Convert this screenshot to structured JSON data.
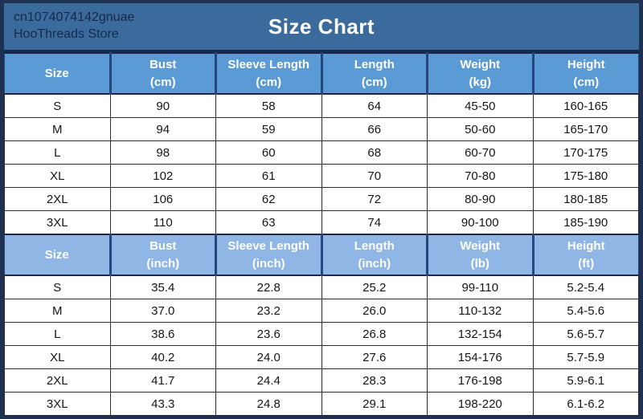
{
  "header": {
    "store_id": "cn1074074142gnuae",
    "store_name": "HooThreads Store",
    "title": "Size Chart"
  },
  "colors": {
    "frame_bg": "#1e3152",
    "banner_bg": "#3b6a9d",
    "banner_text": "#16294d",
    "dark_line": "#17294a",
    "header_sep": "#24467c",
    "header_cm_bg": "#5b9bd5",
    "header_inch_bg": "#8fb6e5"
  },
  "chart_data": [
    {
      "type": "table",
      "title": "Size Chart",
      "section": "metric",
      "columns": [
        "Size",
        "Bust (cm)",
        "Sleeve Length (cm)",
        "Length (cm)",
        "Weight (kg)",
        "Height (cm)"
      ],
      "header_lines": [
        {
          "label": "Size",
          "unit": ""
        },
        {
          "label": "Bust",
          "unit": "(cm)"
        },
        {
          "label": "Sleeve Length",
          "unit": "(cm)"
        },
        {
          "label": "Length",
          "unit": "(cm)"
        },
        {
          "label": "Weight",
          "unit": "(kg)"
        },
        {
          "label": "Height",
          "unit": "(cm)"
        }
      ],
      "rows": [
        [
          "S",
          "90",
          "58",
          "64",
          "45-50",
          "160-165"
        ],
        [
          "M",
          "94",
          "59",
          "66",
          "50-60",
          "165-170"
        ],
        [
          "L",
          "98",
          "60",
          "68",
          "60-70",
          "170-175"
        ],
        [
          "XL",
          "102",
          "61",
          "70",
          "70-80",
          "175-180"
        ],
        [
          "2XL",
          "106",
          "62",
          "72",
          "80-90",
          "180-185"
        ],
        [
          "3XL",
          "110",
          "63",
          "74",
          "90-100",
          "185-190"
        ]
      ]
    },
    {
      "type": "table",
      "section": "imperial",
      "columns": [
        "Size",
        "Bust (inch)",
        "Sleeve Length (inch)",
        "Length (inch)",
        "Weight (lb)",
        "Height (ft)"
      ],
      "header_lines": [
        {
          "label": "Size",
          "unit": ""
        },
        {
          "label": "Bust",
          "unit": "(inch)"
        },
        {
          "label": "Sleeve Length",
          "unit": "(inch)"
        },
        {
          "label": "Length",
          "unit": "(inch)"
        },
        {
          "label": "Weight",
          "unit": "(lb)"
        },
        {
          "label": "Height",
          "unit": "(ft)"
        }
      ],
      "rows": [
        [
          "S",
          "35.4",
          "22.8",
          "25.2",
          "99-110",
          "5.2-5.4"
        ],
        [
          "M",
          "37.0",
          "23.2",
          "26.0",
          "110-132",
          "5.4-5.6"
        ],
        [
          "L",
          "38.6",
          "23.6",
          "26.8",
          "132-154",
          "5.6-5.7"
        ],
        [
          "XL",
          "40.2",
          "24.0",
          "27.6",
          "154-176",
          "5.7-5.9"
        ],
        [
          "2XL",
          "41.7",
          "24.4",
          "28.3",
          "176-198",
          "5.9-6.1"
        ],
        [
          "3XL",
          "43.3",
          "24.8",
          "29.1",
          "198-220",
          "6.1-6.2"
        ]
      ]
    }
  ]
}
